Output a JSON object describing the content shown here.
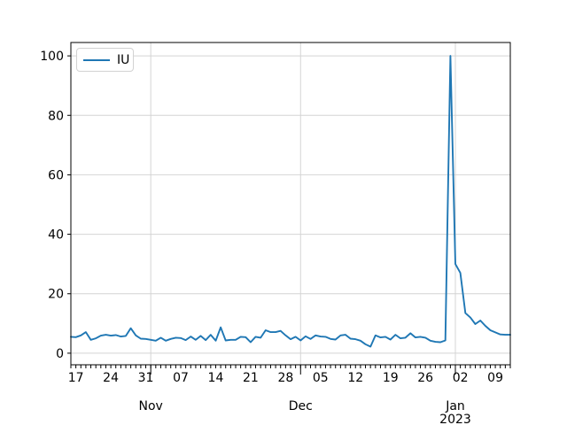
{
  "figure": {
    "background": "#ffffff",
    "axes_edge_color": "#000000",
    "grid_color": "#d4d4d4",
    "tick_label_color": "#000000"
  },
  "legend": {
    "entries": [
      "IU"
    ],
    "position": "upper left"
  },
  "chart_data": {
    "type": "line",
    "title": "",
    "xlabel": "",
    "ylabel": "",
    "grid": {
      "horizontal": true,
      "vertical_on_month_starts": true,
      "color": "#d4d4d4"
    },
    "ylim": [
      -3.9,
      104.5
    ],
    "yticks": [
      0,
      20,
      40,
      60,
      80,
      100
    ],
    "x_week_ticks": {
      "indices": [
        1,
        8,
        15,
        22,
        29,
        36,
        43,
        50,
        57,
        64,
        71,
        78,
        85
      ],
      "labels": [
        "17",
        "24",
        "31",
        "07",
        "14",
        "21",
        "28",
        "05",
        "12",
        "19",
        "26",
        "02",
        "09"
      ]
    },
    "x_month_ticks": {
      "indices": [
        16,
        46,
        77
      ],
      "labels": [
        "Nov",
        "Dec",
        "Jan"
      ],
      "year_label": "2023",
      "year_tick_index": 77
    },
    "series": [
      {
        "name": "IU",
        "color": "#1f77b4",
        "dates": [
          "2022-10-16",
          "2022-10-17",
          "2022-10-18",
          "2022-10-19",
          "2022-10-20",
          "2022-10-21",
          "2022-10-22",
          "2022-10-23",
          "2022-10-24",
          "2022-10-25",
          "2022-10-26",
          "2022-10-27",
          "2022-10-28",
          "2022-10-29",
          "2022-10-30",
          "2022-10-31",
          "2022-11-01",
          "2022-11-02",
          "2022-11-03",
          "2022-11-04",
          "2022-11-05",
          "2022-11-06",
          "2022-11-07",
          "2022-11-08",
          "2022-11-09",
          "2022-11-10",
          "2022-11-11",
          "2022-11-12",
          "2022-11-13",
          "2022-11-14",
          "2022-11-15",
          "2022-11-16",
          "2022-11-17",
          "2022-11-18",
          "2022-11-19",
          "2022-11-20",
          "2022-11-21",
          "2022-11-22",
          "2022-11-23",
          "2022-11-24",
          "2022-11-25",
          "2022-11-26",
          "2022-11-27",
          "2022-11-28",
          "2022-11-29",
          "2022-11-30",
          "2022-12-01",
          "2022-12-02",
          "2022-12-03",
          "2022-12-04",
          "2022-12-05",
          "2022-12-06",
          "2022-12-07",
          "2022-12-08",
          "2022-12-09",
          "2022-12-10",
          "2022-12-11",
          "2022-12-12",
          "2022-12-13",
          "2022-12-14",
          "2022-12-15",
          "2022-12-16",
          "2022-12-17",
          "2022-12-18",
          "2022-12-19",
          "2022-12-20",
          "2022-12-21",
          "2022-12-22",
          "2022-12-23",
          "2022-12-24",
          "2022-12-25",
          "2022-12-26",
          "2022-12-27",
          "2022-12-28",
          "2022-12-29",
          "2022-12-30",
          "2022-12-31",
          "2023-01-01",
          "2023-01-02",
          "2023-01-03",
          "2023-01-04",
          "2023-01-05",
          "2023-01-06",
          "2023-01-07",
          "2023-01-08",
          "2023-01-09",
          "2023-01-10",
          "2023-01-11",
          "2023-01-12"
        ],
        "values": [
          5.5,
          5.4,
          6.0,
          7.1,
          4.5,
          5.0,
          5.9,
          6.2,
          5.9,
          6.1,
          5.6,
          5.8,
          8.4,
          6.0,
          4.9,
          4.8,
          4.5,
          4.2,
          5.2,
          4.2,
          4.8,
          5.2,
          5.1,
          4.4,
          5.6,
          4.5,
          5.8,
          4.4,
          6.2,
          4.2,
          8.7,
          4.3,
          4.5,
          4.5,
          5.5,
          5.4,
          3.7,
          5.5,
          5.2,
          7.7,
          7.1,
          7.1,
          7.5,
          6.0,
          4.7,
          5.5,
          4.3,
          5.7,
          4.8,
          6.0,
          5.6,
          5.5,
          4.8,
          4.6,
          6.0,
          6.2,
          4.9,
          4.7,
          4.2,
          3.0,
          2.2,
          6.0,
          5.3,
          5.5,
          4.6,
          6.2,
          5.0,
          5.2,
          6.7,
          5.3,
          5.5,
          5.2,
          4.2,
          3.8,
          3.7,
          4.3,
          100,
          30,
          27,
          13.5,
          12,
          9.8,
          11,
          9.2,
          7.7,
          7.0,
          6.3,
          6.2,
          6.2
        ]
      }
    ]
  }
}
